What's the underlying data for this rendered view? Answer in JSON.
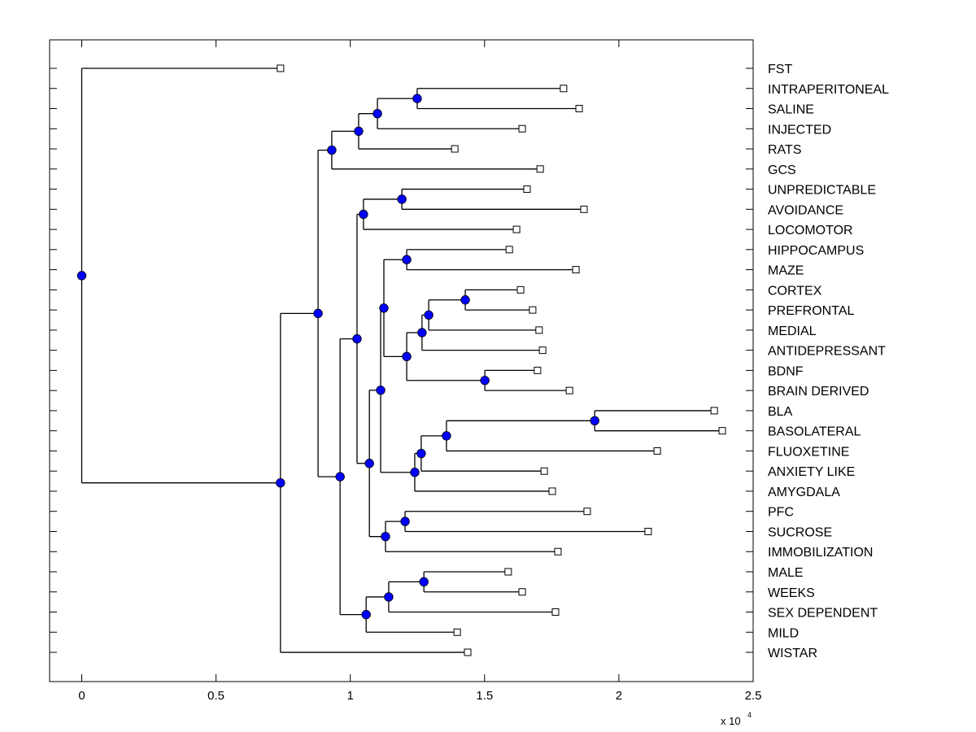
{
  "chart_data": {
    "type": "dendrogram",
    "title": "",
    "xlabel": "",
    "ylabel": "",
    "x_multiplier_label": "x 10",
    "x_multiplier_exponent": "4",
    "xlim": [
      -0.12,
      2.5
    ],
    "x_ticks": [
      0,
      0.5,
      1,
      1.5,
      2,
      2.5
    ],
    "x_tick_labels": [
      "0",
      "0.5",
      "1",
      "1.5",
      "2",
      "2.5"
    ],
    "units": "x 10^4",
    "colors": {
      "node_fill": "#0000ff",
      "line": "#000000",
      "leaf_fill": "#ffffff"
    },
    "leaves": [
      {
        "id": "FST",
        "label": "FST",
        "x": 0.74
      },
      {
        "id": "INTRAPERITONEAL",
        "label": "INTRAPERITONEAL",
        "x": 1.794
      },
      {
        "id": "SALINE",
        "label": "SALINE",
        "x": 1.852
      },
      {
        "id": "INJECTED",
        "label": "INJECTED",
        "x": 1.64
      },
      {
        "id": "RATS",
        "label": "RATS",
        "x": 1.389
      },
      {
        "id": "GCS",
        "label": "GCS",
        "x": 1.707
      },
      {
        "id": "UNPREDICTABLE",
        "label": "UNPREDICTABLE",
        "x": 1.658
      },
      {
        "id": "AVOIDANCE",
        "label": "AVOIDANCE",
        "x": 1.87
      },
      {
        "id": "LOCOMOTOR",
        "label": "LOCOMOTOR",
        "x": 1.619
      },
      {
        "id": "HIPPOCAMPUS",
        "label": "HIPPOCAMPUS",
        "x": 1.592
      },
      {
        "id": "MAZE",
        "label": "MAZE",
        "x": 1.84
      },
      {
        "id": "CORTEX",
        "label": "CORTEX",
        "x": 1.634
      },
      {
        "id": "PREFRONTAL",
        "label": "PREFRONTAL",
        "x": 1.679
      },
      {
        "id": "MEDIAL",
        "label": "MEDIAL",
        "x": 1.703
      },
      {
        "id": "ANTIDEPRESSANT",
        "label": "ANTIDEPRESSANT",
        "x": 1.716
      },
      {
        "id": "BDNF",
        "label": "BDNF",
        "x": 1.697
      },
      {
        "id": "BRAIN_DERIVED",
        "label": "BRAIN DERIVED",
        "x": 1.816
      },
      {
        "id": "BLA",
        "label": "BLA",
        "x": 2.355
      },
      {
        "id": "BASOLATERAL",
        "label": "BASOLATERAL",
        "x": 2.385
      },
      {
        "id": "FLUOXETINE",
        "label": "FLUOXETINE",
        "x": 2.143
      },
      {
        "id": "ANXIETY_LIKE",
        "label": "ANXIETY LIKE",
        "x": 1.722
      },
      {
        "id": "AMYGDALA",
        "label": "AMYGDALA",
        "x": 1.752
      },
      {
        "id": "PFC",
        "label": "PFC",
        "x": 1.882
      },
      {
        "id": "SUCROSE",
        "label": "SUCROSE",
        "x": 2.109
      },
      {
        "id": "IMMOBILIZATION",
        "label": "IMMOBILIZATION",
        "x": 1.773
      },
      {
        "id": "MALE",
        "label": "MALE",
        "x": 1.588
      },
      {
        "id": "WEEKS",
        "label": "WEEKS",
        "x": 1.64
      },
      {
        "id": "SEX_DEPENDENT",
        "label": "SEX DEPENDENT",
        "x": 1.764
      },
      {
        "id": "MILD",
        "label": "MILD",
        "x": 1.398
      },
      {
        "id": "WISTAR",
        "label": "WISTAR",
        "x": 1.437
      }
    ],
    "nodes": [
      {
        "id": "n_root",
        "x": 0.0,
        "children": [
          "FST",
          "n_a"
        ]
      },
      {
        "id": "n_a",
        "x": 0.74,
        "children": [
          "n_b",
          "WISTAR"
        ]
      },
      {
        "id": "n_b",
        "x": 0.88,
        "children": [
          "n_c",
          "n_d"
        ]
      },
      {
        "id": "n_c",
        "x": 0.931,
        "children": [
          "n_c1",
          "GCS"
        ]
      },
      {
        "id": "n_c1",
        "x": 1.031,
        "children": [
          "n_c2",
          "RATS"
        ]
      },
      {
        "id": "n_c2",
        "x": 1.101,
        "children": [
          "n_c3",
          "INJECTED"
        ]
      },
      {
        "id": "n_c3",
        "x": 1.249,
        "children": [
          "INTRAPERITONEAL",
          "SALINE"
        ]
      },
      {
        "id": "n_d",
        "x": 0.962,
        "children": [
          "n_e",
          "n_s"
        ]
      },
      {
        "id": "n_e",
        "x": 1.025,
        "children": [
          "n_f",
          "n_g"
        ]
      },
      {
        "id": "n_f",
        "x": 1.049,
        "children": [
          "n_f1",
          "LOCOMOTOR"
        ]
      },
      {
        "id": "n_f1",
        "x": 1.192,
        "children": [
          "UNPREDICTABLE",
          "AVOIDANCE"
        ]
      },
      {
        "id": "n_g",
        "x": 1.071,
        "children": [
          "n_h",
          "n_p"
        ]
      },
      {
        "id": "n_h",
        "x": 1.113,
        "children": [
          "n_i",
          "n_m"
        ]
      },
      {
        "id": "n_i",
        "x": 1.125,
        "children": [
          "n_i1",
          "n_j"
        ]
      },
      {
        "id": "n_i1",
        "x": 1.21,
        "children": [
          "HIPPOCAMPUS",
          "MAZE"
        ]
      },
      {
        "id": "n_j",
        "x": 1.21,
        "children": [
          "n_k",
          "n_l"
        ]
      },
      {
        "id": "n_k",
        "x": 1.267,
        "children": [
          "n_k1",
          "ANTIDEPRESSANT"
        ]
      },
      {
        "id": "n_k1",
        "x": 1.292,
        "children": [
          "n_k2",
          "MEDIAL"
        ]
      },
      {
        "id": "n_k2",
        "x": 1.428,
        "children": [
          "CORTEX",
          "PREFRONTAL"
        ]
      },
      {
        "id": "n_l",
        "x": 1.501,
        "children": [
          "BDNF",
          "BRAIN_DERIVED"
        ]
      },
      {
        "id": "n_m",
        "x": 1.24,
        "children": [
          "n_n",
          "AMYGDALA"
        ]
      },
      {
        "id": "n_n",
        "x": 1.264,
        "children": [
          "n_o",
          "ANXIETY_LIKE"
        ]
      },
      {
        "id": "n_o",
        "x": 1.358,
        "children": [
          "n_o1",
          "FLUOXETINE"
        ]
      },
      {
        "id": "n_o1",
        "x": 1.91,
        "children": [
          "BLA",
          "BASOLATERAL"
        ]
      },
      {
        "id": "n_p",
        "x": 1.131,
        "children": [
          "n_q",
          "IMMOBILIZATION"
        ]
      },
      {
        "id": "n_q",
        "x": 1.204,
        "children": [
          "PFC",
          "SUCROSE"
        ]
      },
      {
        "id": "n_s",
        "x": 1.059,
        "children": [
          "n_t",
          "MILD"
        ]
      },
      {
        "id": "n_t",
        "x": 1.143,
        "children": [
          "n_u",
          "SEX_DEPENDENT"
        ]
      },
      {
        "id": "n_u",
        "x": 1.274,
        "children": [
          "MALE",
          "WEEKS"
        ]
      }
    ]
  }
}
